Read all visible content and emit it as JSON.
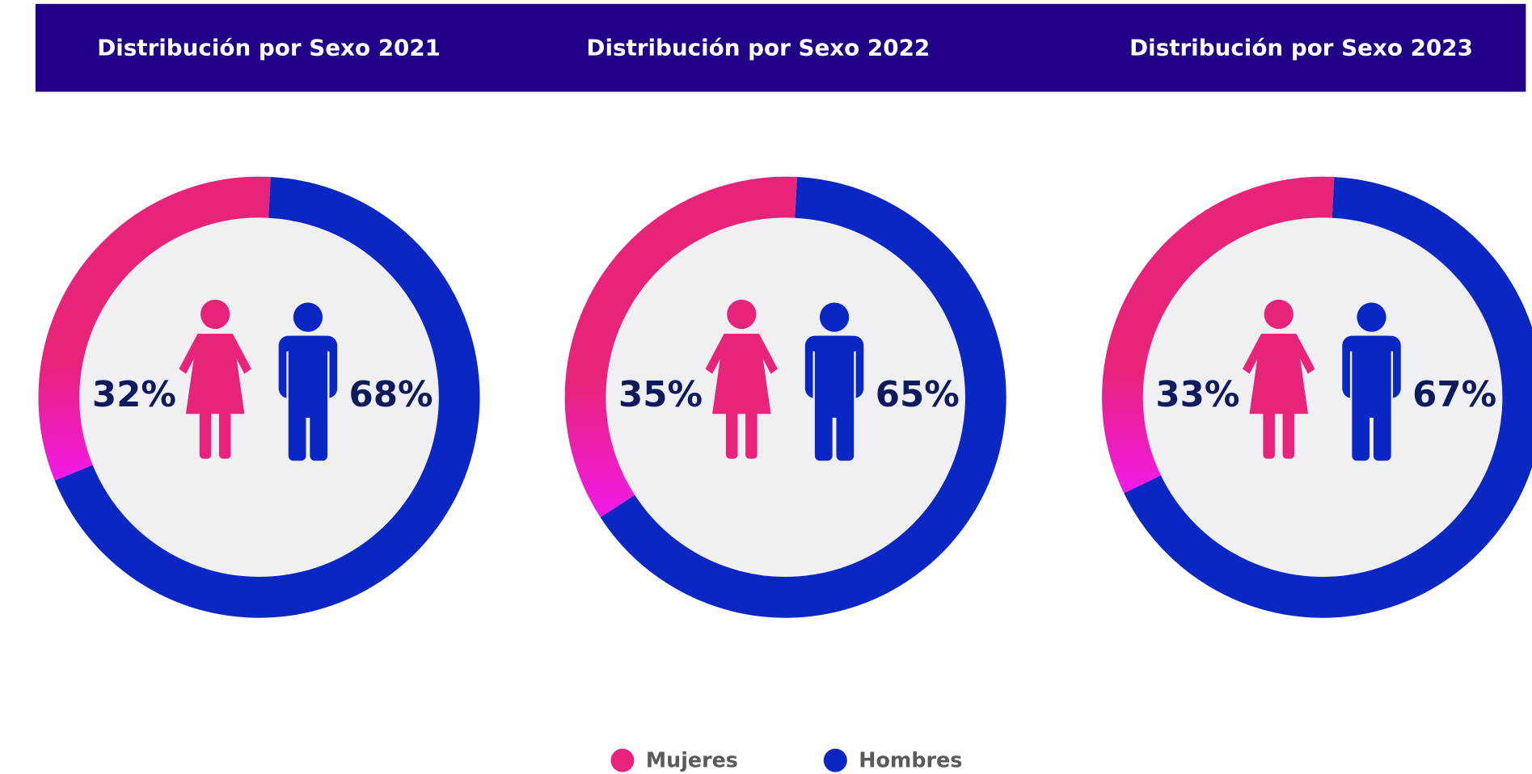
{
  "legend": [
    {
      "name": "Mujeres",
      "color": "#e8237a"
    },
    {
      "name": "Hombres",
      "color": "#0a27c4"
    }
  ],
  "chart_data": [
    {
      "type": "pie",
      "title": "Distribución por Sexo 2021",
      "values": [
        32,
        68
      ],
      "value_labels": [
        "32%",
        "68%"
      ]
    },
    {
      "type": "pie",
      "title": "Distribución por Sexo 2022",
      "values": [
        35,
        65
      ],
      "value_labels": [
        "35%",
        "65%"
      ]
    },
    {
      "type": "pie",
      "title": "Distribución por Sexo 2023",
      "values": [
        33,
        67
      ],
      "value_labels": [
        "33%",
        "67%"
      ]
    }
  ]
}
